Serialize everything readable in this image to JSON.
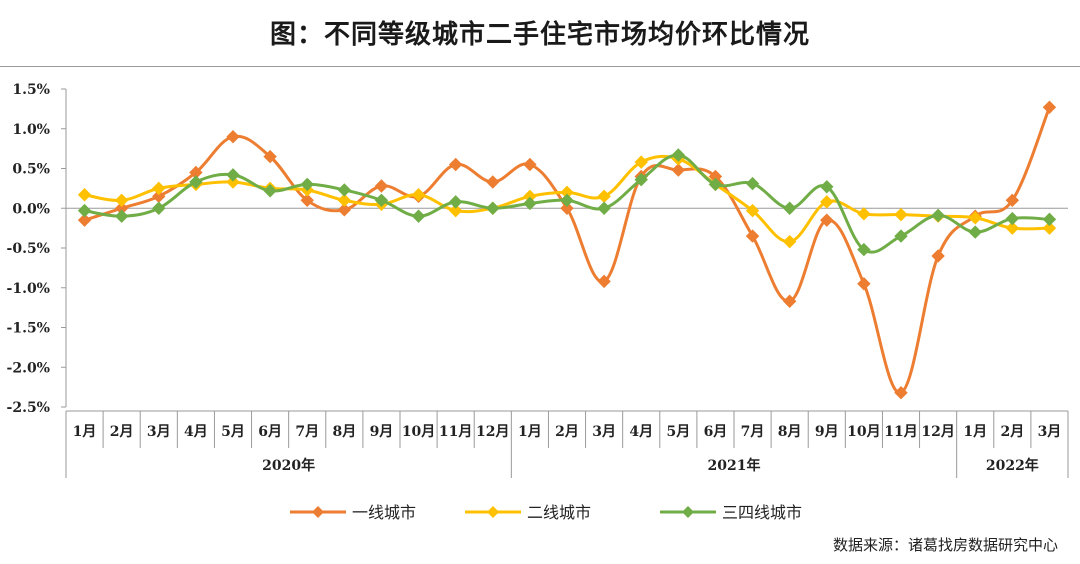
{
  "title": "图：不同等级城市二手住宅市场均价环比情况",
  "source": "数据来源：诸葛找房数据研究中心",
  "colors": {
    "tier1": "#ED7D31",
    "tier2": "#FFC000",
    "tier34": "#70AD47"
  },
  "chart_data": {
    "type": "line",
    "categories": [
      "1月",
      "2月",
      "3月",
      "4月",
      "5月",
      "6月",
      "7月",
      "8月",
      "9月",
      "10月",
      "11月",
      "12月",
      "1月",
      "2月",
      "3月",
      "4月",
      "5月",
      "6月",
      "7月",
      "8月",
      "9月",
      "10月",
      "11月",
      "12月",
      "1月",
      "2月",
      "3月"
    ],
    "year_groups": [
      {
        "label": "2020年",
        "count": 12
      },
      {
        "label": "2021年",
        "count": 12
      },
      {
        "label": "2022年",
        "count": 3
      }
    ],
    "ylim": [
      -2.5,
      1.5
    ],
    "yticks": [
      1.5,
      1.0,
      0.5,
      0.0,
      -0.5,
      -1.0,
      -1.5,
      -2.0,
      -2.5
    ],
    "ytick_labels": [
      "1.5%",
      "1.0%",
      "0.5%",
      "0.0%",
      "-0.5%",
      "-1.0%",
      "-1.5%",
      "-2.0%",
      "-2.5%"
    ],
    "legend_position": "bottom",
    "grid": false,
    "series": [
      {
        "key": "tier1",
        "name": "一线城市",
        "color": "#ED7D31",
        "values": [
          -0.15,
          0.0,
          0.15,
          0.45,
          0.9,
          0.65,
          0.1,
          -0.02,
          0.28,
          0.15,
          0.55,
          0.33,
          0.55,
          0.0,
          -0.92,
          0.4,
          0.48,
          0.4,
          -0.35,
          -1.17,
          -0.15,
          -0.95,
          -2.32,
          -0.6,
          -0.1,
          0.1,
          1.27
        ]
      },
      {
        "key": "tier2",
        "name": "二线城市",
        "color": "#FFC000",
        "values": [
          0.17,
          0.1,
          0.25,
          0.3,
          0.33,
          0.25,
          0.23,
          0.1,
          0.05,
          0.17,
          -0.03,
          0.0,
          0.15,
          0.2,
          0.15,
          0.58,
          0.62,
          0.3,
          -0.03,
          -0.42,
          0.08,
          -0.07,
          -0.08,
          -0.1,
          -0.12,
          -0.25,
          -0.25
        ]
      },
      {
        "key": "tier34",
        "name": "三四线城市",
        "color": "#70AD47",
        "values": [
          -0.03,
          -0.1,
          0.0,
          0.33,
          0.42,
          0.22,
          0.3,
          0.23,
          0.1,
          -0.1,
          0.08,
          0.0,
          0.06,
          0.1,
          0.0,
          0.36,
          0.67,
          0.3,
          0.31,
          0.0,
          0.27,
          -0.52,
          -0.35,
          -0.09,
          -0.3,
          -0.13,
          -0.14
        ]
      }
    ]
  }
}
